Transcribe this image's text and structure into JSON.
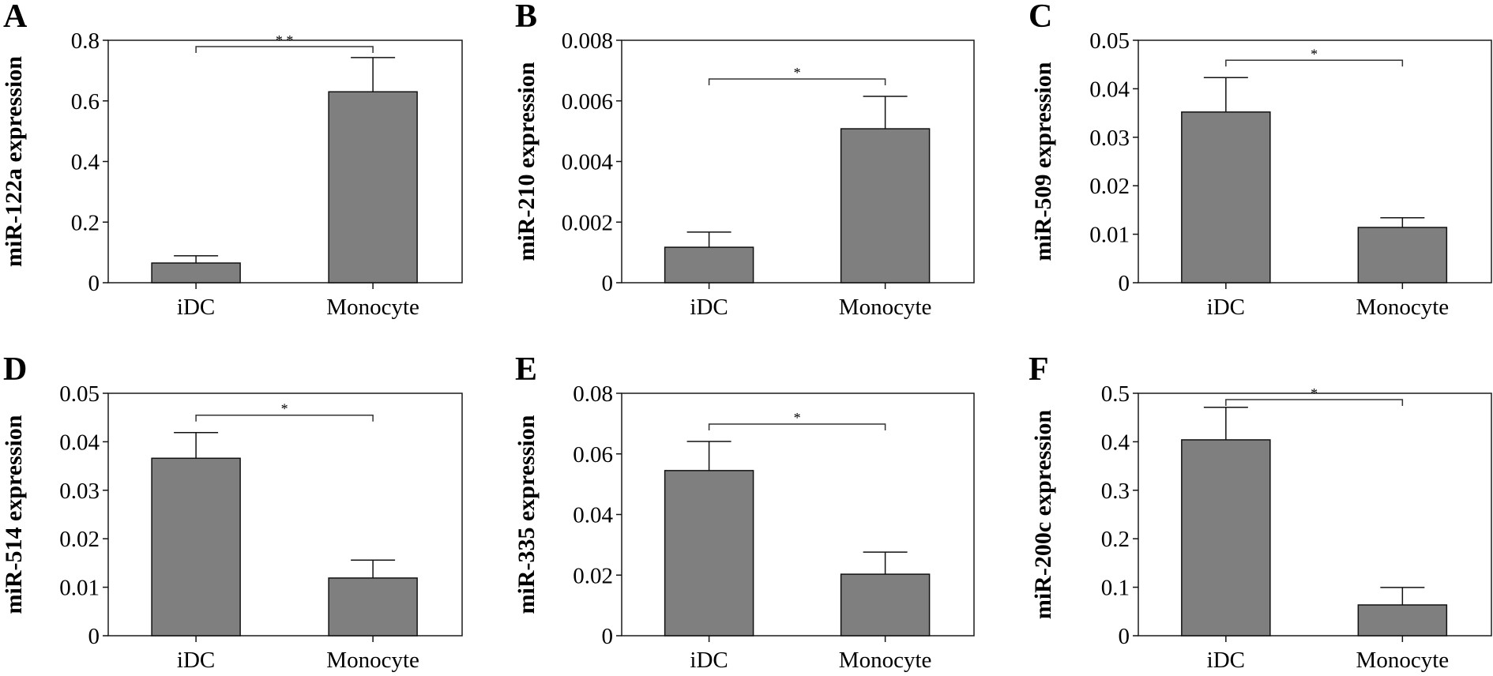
{
  "figure": {
    "bar_color": "#7f7f7f",
    "edge_color": "#111111"
  },
  "chart_data": [
    {
      "panel": "A",
      "type": "bar",
      "title": "",
      "xlabel": "",
      "ylabel": "miR-122a expression",
      "categories": [
        "iDC",
        "Monocyte"
      ],
      "values": [
        0.065,
        0.63
      ],
      "error_upper": [
        0.089,
        0.743
      ],
      "ylim": [
        0,
        0.8
      ],
      "yticks": [
        0,
        0.2,
        0.4,
        0.6,
        0.8
      ],
      "ytick_labels": [
        "0",
        "0.2",
        "0.4",
        "0.6",
        "0.8"
      ],
      "significance": "* *",
      "grid": false
    },
    {
      "panel": "B",
      "type": "bar",
      "title": "",
      "xlabel": "",
      "ylabel": "miR-210 expression",
      "categories": [
        "iDC",
        "Monocyte"
      ],
      "values": [
        0.00117,
        0.00508
      ],
      "error_upper": [
        0.00167,
        0.00615
      ],
      "ylim": [
        0,
        0.008
      ],
      "yticks": [
        0,
        0.002,
        0.004,
        0.006,
        0.008
      ],
      "ytick_labels": [
        "0",
        "0.002",
        "0.004",
        "0.006",
        "0.008"
      ],
      "significance": "*",
      "grid": false
    },
    {
      "panel": "C",
      "type": "bar",
      "title": "",
      "xlabel": "",
      "ylabel": "miR-509 expression",
      "categories": [
        "iDC",
        "Monocyte"
      ],
      "values": [
        0.0352,
        0.0114
      ],
      "error_upper": [
        0.0423,
        0.0134
      ],
      "ylim": [
        0,
        0.05
      ],
      "yticks": [
        0,
        0.01,
        0.02,
        0.03,
        0.04,
        0.05
      ],
      "ytick_labels": [
        "0",
        "0.01",
        "0.02",
        "0.03",
        "0.04",
        "0.05"
      ],
      "significance": "*",
      "grid": false
    },
    {
      "panel": "D",
      "type": "bar",
      "title": "",
      "xlabel": "",
      "ylabel": "miR-514 expression",
      "categories": [
        "iDC",
        "Monocyte"
      ],
      "values": [
        0.0366,
        0.0119
      ],
      "error_upper": [
        0.0419,
        0.0156
      ],
      "ylim": [
        0,
        0.05
      ],
      "yticks": [
        0,
        0.01,
        0.02,
        0.03,
        0.04,
        0.05
      ],
      "ytick_labels": [
        "0",
        "0.01",
        "0.02",
        "0.03",
        "0.04",
        "0.05"
      ],
      "significance": "*",
      "grid": false
    },
    {
      "panel": "E",
      "type": "bar",
      "title": "",
      "xlabel": "",
      "ylabel": "miR-335 expression",
      "categories": [
        "iDC",
        "Monocyte"
      ],
      "values": [
        0.0545,
        0.0203
      ],
      "error_upper": [
        0.0641,
        0.0276
      ],
      "ylim": [
        0,
        0.08
      ],
      "yticks": [
        0,
        0.02,
        0.04,
        0.06,
        0.08
      ],
      "ytick_labels": [
        "0",
        "0.02",
        "0.04",
        "0.06",
        "0.08"
      ],
      "significance": "*",
      "grid": false
    },
    {
      "panel": "F",
      "type": "bar",
      "title": "",
      "xlabel": "",
      "ylabel": "miR-200c expression",
      "categories": [
        "iDC",
        "Monocyte"
      ],
      "values": [
        0.404,
        0.0635
      ],
      "error_upper": [
        0.471,
        0.0995
      ],
      "ylim": [
        0,
        0.5
      ],
      "yticks": [
        0,
        0.1,
        0.2,
        0.3,
        0.4,
        0.5
      ],
      "ytick_labels": [
        "0",
        "0.1",
        "0.2",
        "0.3",
        "0.4",
        "0.5"
      ],
      "significance": "*",
      "grid": false
    }
  ]
}
